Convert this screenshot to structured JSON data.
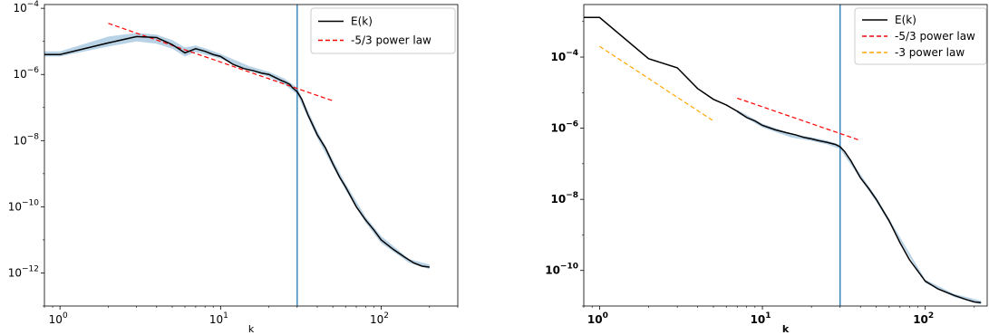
{
  "chart_data": [
    {
      "type": "line",
      "title": "",
      "xlabel": "k",
      "ylabel": "",
      "xscale": "log",
      "yscale": "log",
      "xlim": [
        0.8,
        300
      ],
      "ylim": [
        1e-13,
        0.00013
      ],
      "grid": false,
      "legend": "top-right",
      "xticks": [
        {
          "value": 1,
          "mantissa": "10",
          "exponent": "0"
        },
        {
          "value": 10,
          "mantissa": "10",
          "exponent": "1"
        },
        {
          "value": 100,
          "mantissa": "10",
          "exponent": "2"
        }
      ],
      "yticks": [
        {
          "value": 1e-12,
          "mantissa": "10",
          "exponent": "−12"
        },
        {
          "value": 1e-10,
          "mantissa": "10",
          "exponent": "−10"
        },
        {
          "value": 1e-08,
          "mantissa": "10",
          "exponent": "−8"
        },
        {
          "value": 1e-06,
          "mantissa": "10",
          "exponent": "−6"
        },
        {
          "value": 0.0001,
          "mantissa": "10",
          "exponent": "−4"
        }
      ],
      "vline": {
        "x": 30,
        "color": "#1f77b4"
      },
      "series": [
        {
          "name": "E(k)",
          "color": "#000000",
          "dash": "",
          "style": "line",
          "x": [
            0.8,
            1,
            2,
            3,
            4,
            5,
            6,
            7,
            8,
            9,
            10,
            12,
            14,
            16,
            18,
            20,
            22,
            24,
            25,
            27,
            28,
            30,
            32,
            35,
            40,
            45,
            50,
            55,
            60,
            70,
            80,
            90,
            100,
            120,
            140,
            160,
            180,
            200
          ],
          "y": [
            4e-06,
            4e-06,
            9e-06,
            1.4e-05,
            1.3e-05,
            8e-06,
            4.5e-06,
            6e-06,
            5e-06,
            4e-06,
            3.5e-06,
            2e-06,
            1.5e-06,
            1.3e-06,
            1.1e-06,
            1e-06,
            8e-07,
            6.5e-07,
            6e-07,
            5e-07,
            4e-07,
            3e-07,
            1.8e-07,
            6e-08,
            1.5e-08,
            6e-09,
            2e-09,
            8e-10,
            4e-10,
            1e-10,
            4e-11,
            2e-11,
            1e-11,
            5e-12,
            3e-12,
            2e-12,
            1.6e-12,
            1.5e-12
          ]
        },
        {
          "name": "-5/3 power law",
          "color": "#ff0000",
          "dash": "5,3",
          "style": "line",
          "x": [
            2,
            50
          ],
          "y": [
            3.5e-05,
            1.6e-07
          ]
        }
      ],
      "band": {
        "color": "#b8d2e6",
        "x": [
          0.8,
          1,
          2,
          3,
          4,
          5,
          6,
          7,
          8,
          10,
          15,
          20,
          25,
          30,
          40,
          60,
          80,
          100,
          150,
          200
        ],
        "upper": [
          5e-06,
          5e-06,
          1.4e-05,
          1.8e-05,
          1.6e-05,
          1.1e-05,
          6.5e-06,
          7.5e-06,
          6.2e-06,
          4.2e-06,
          1.8e-06,
          1.2e-06,
          7.5e-07,
          4e-07,
          2e-08,
          5e-10,
          5e-11,
          1.3e-11,
          2.6e-12,
          1.8e-12
        ],
        "lower": [
          3.5e-06,
          3.5e-06,
          7e-06,
          1e-05,
          8.5e-06,
          6e-06,
          3.5e-06,
          4.8e-06,
          4e-06,
          3e-06,
          1.3e-06,
          8.5e-07,
          5e-07,
          2.5e-07,
          1.2e-08,
          3.2e-10,
          3.3e-11,
          8e-12,
          2e-12,
          1.3e-12
        ]
      }
    },
    {
      "type": "line",
      "title": "",
      "xlabel": "k",
      "ylabel": "",
      "xscale": "log",
      "yscale": "log",
      "xlim": [
        0.8,
        240
      ],
      "ylim": [
        1e-11,
        0.003
      ],
      "grid": false,
      "legend": "top-right",
      "xticks": [
        {
          "value": 1,
          "mantissa": "10",
          "exponent": "0"
        },
        {
          "value": 10,
          "mantissa": "10",
          "exponent": "1"
        },
        {
          "value": 100,
          "mantissa": "10",
          "exponent": "2"
        }
      ],
      "yticks": [
        {
          "value": 1e-10,
          "mantissa": "10",
          "exponent": "−10"
        },
        {
          "value": 1e-08,
          "mantissa": "10",
          "exponent": "−8"
        },
        {
          "value": 1e-06,
          "mantissa": "10",
          "exponent": "−6"
        },
        {
          "value": 0.0001,
          "mantissa": "10",
          "exponent": "−4"
        }
      ],
      "vline": {
        "x": 30,
        "color": "#1f77b4"
      },
      "series": [
        {
          "name": "E(k)",
          "color": "#000000",
          "dash": "",
          "style": "line",
          "x": [
            0.8,
            1,
            2,
            3,
            4,
            5,
            6,
            7,
            8,
            9,
            10,
            12,
            14,
            16,
            18,
            20,
            22,
            25,
            28,
            30,
            32,
            35,
            40,
            45,
            50,
            60,
            70,
            80,
            100,
            120,
            150,
            180,
            200,
            220
          ],
          "y": [
            0.0013,
            0.0013,
            9e-05,
            5e-05,
            1.3e-05,
            6.5e-06,
            4.5e-06,
            3e-06,
            2e-06,
            1.6e-06,
            1.2e-06,
            9e-07,
            7.5e-07,
            6.5e-07,
            5.5e-07,
            5e-07,
            4.5e-07,
            4e-07,
            3.5e-07,
            3e-07,
            2.2e-07,
            1.2e-07,
            4e-08,
            2e-08,
            1e-08,
            2.5e-09,
            6e-10,
            2e-10,
            5e-11,
            3e-11,
            2e-11,
            1.5e-11,
            1.3e-11,
            1.25e-11
          ]
        },
        {
          "name": "-5/3 power law",
          "color": "#ff0000",
          "dash": "5,3",
          "style": "line",
          "x": [
            7,
            40
          ],
          "y": [
            7e-06,
            4.5e-07
          ]
        },
        {
          "name": "-3 power law",
          "color": "#ffa500",
          "dash": "5,3",
          "style": "line",
          "x": [
            1,
            5
          ],
          "y": [
            0.0002,
            1.6e-06
          ]
        }
      ],
      "band": {
        "color": "#b8d2e6",
        "x": [
          7,
          10,
          15,
          20,
          25,
          30,
          50,
          100,
          150,
          220
        ],
        "upper": [
          3.3e-06,
          1.35e-06,
          7e-07,
          5.6e-07,
          4.5e-07,
          3.4e-07,
          1.15e-08,
          5.5e-11,
          2.2e-11,
          1.4e-11
        ],
        "lower": [
          2.7e-06,
          1.05e-06,
          5.5e-07,
          4.4e-07,
          3.5e-07,
          2.6e-07,
          8.5e-09,
          4.5e-11,
          1.8e-11,
          1.1e-11
        ]
      }
    }
  ]
}
